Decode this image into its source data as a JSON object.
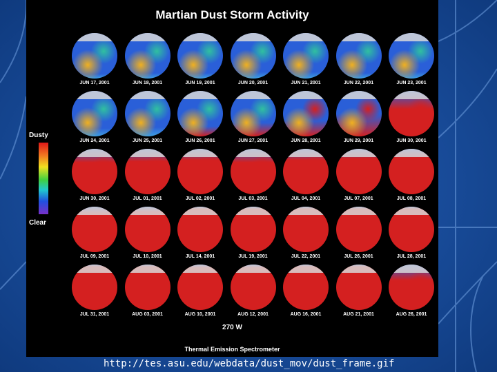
{
  "title": "Martian Dust Storm Activity",
  "legend": {
    "top_label": "Dusty",
    "bottom_label": "Clear"
  },
  "longitude_label": "270 W",
  "instrument_label": "Thermal Emission Spectrometer",
  "source_url": "http://tes.asu.edu/webdata/dust_mov/dust_frame.gif",
  "colors": {
    "clear": "#2a5fd8",
    "dusty": "#d42020",
    "mid": "#f0b020"
  },
  "frames": [
    {
      "date": "JUN 17, 2001",
      "dust": 0.1
    },
    {
      "date": "JUN 18, 2001",
      "dust": 0.12
    },
    {
      "date": "JUN 19, 2001",
      "dust": 0.12
    },
    {
      "date": "JUN 20, 2001",
      "dust": 0.15
    },
    {
      "date": "JUN 21, 2001",
      "dust": 0.15
    },
    {
      "date": "JUN 22, 2001",
      "dust": 0.12
    },
    {
      "date": "JUN 23, 2001",
      "dust": 0.15
    },
    {
      "date": "JUN 24, 2001",
      "dust": 0.18
    },
    {
      "date": "JUN 25, 2001",
      "dust": 0.2
    },
    {
      "date": "JUN 26, 2001",
      "dust": 0.22
    },
    {
      "date": "JUN 27, 2001",
      "dust": 0.3
    },
    {
      "date": "JUN 28, 2001",
      "dust": 0.35
    },
    {
      "date": "JUN 29, 2001",
      "dust": 0.5
    },
    {
      "date": "JUN 30, 2001",
      "dust": 0.6
    },
    {
      "date": "JUN 30, 2001",
      "dust": 0.7
    },
    {
      "date": "JUL 01, 2001",
      "dust": 0.72
    },
    {
      "date": "JUL 02, 2001",
      "dust": 0.75
    },
    {
      "date": "JUL 03, 2001",
      "dust": 0.7
    },
    {
      "date": "JUL 04, 2001",
      "dust": 0.75
    },
    {
      "date": "JUL 07, 2001",
      "dust": 0.78
    },
    {
      "date": "JUL 08, 2001",
      "dust": 0.8
    },
    {
      "date": "JUL 09, 2001",
      "dust": 0.85
    },
    {
      "date": "JUL 10, 2001",
      "dust": 0.88
    },
    {
      "date": "JUL 14, 2001",
      "dust": 0.95
    },
    {
      "date": "JUL 19, 2001",
      "dust": 0.95
    },
    {
      "date": "JUL 22, 2001",
      "dust": 0.95
    },
    {
      "date": "JUL 26, 2001",
      "dust": 0.95
    },
    {
      "date": "JUL 28, 2001",
      "dust": 0.95
    },
    {
      "date": "JUL 31, 2001",
      "dust": 0.97
    },
    {
      "date": "AUG 03, 2001",
      "dust": 0.95
    },
    {
      "date": "AUG 10, 2001",
      "dust": 0.93
    },
    {
      "date": "AUG 12, 2001",
      "dust": 0.93
    },
    {
      "date": "AUG 16, 2001",
      "dust": 0.97
    },
    {
      "date": "AUG 21, 2001",
      "dust": 0.97
    },
    {
      "date": "AUG 26, 2001",
      "dust": 0.65
    }
  ]
}
